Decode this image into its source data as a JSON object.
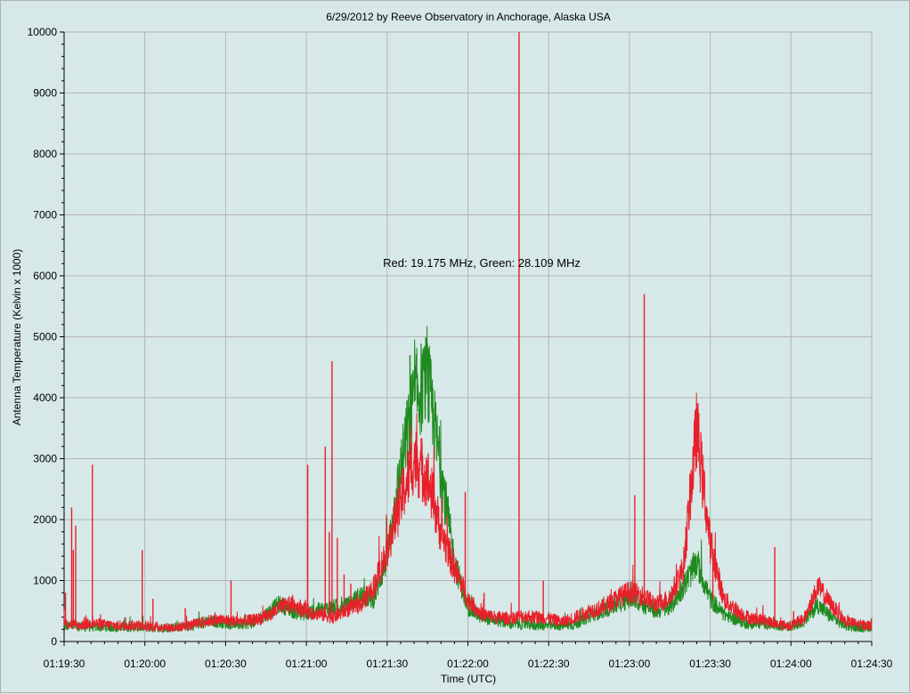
{
  "chart_data": {
    "type": "line",
    "title": "6/29/2012  by  Reeve Observatory  in  Anchorage, Alaska  USA",
    "xlabel": "Time (UTC)",
    "ylabel": "Antenna Temperature (Kelvin x 1000)",
    "ylim": [
      0,
      10000
    ],
    "xlim": [
      "01:19:30",
      "01:24:30"
    ],
    "y_ticks": [
      "0",
      "1000",
      "2000",
      "3000",
      "4000",
      "5000",
      "6000",
      "7000",
      "8000",
      "9000",
      "10000"
    ],
    "x_ticks": [
      "01:19:30",
      "01:20:00",
      "01:20:30",
      "01:21:00",
      "01:21:30",
      "01:22:00",
      "01:22:30",
      "01:23:00",
      "01:23:30",
      "01:24:00",
      "01:24:30"
    ],
    "grid": true,
    "annotation": "Red: 19.175 MHz, Green: 28.109 MHz",
    "series": [
      {
        "color": "#e8202a",
        "x_seconds": [
          0,
          5,
          10,
          15,
          20,
          25,
          30,
          35,
          40,
          45,
          50,
          55,
          60,
          65,
          70,
          75,
          80,
          85,
          90,
          95,
          100,
          105,
          110,
          115,
          120,
          125,
          130,
          135,
          140,
          145,
          150,
          155,
          160,
          165,
          170,
          175,
          180,
          185,
          190,
          195,
          200,
          205,
          210,
          215,
          220,
          225,
          230,
          235,
          240,
          245,
          250,
          255,
          260,
          265,
          270,
          275,
          280,
          285,
          290,
          295,
          300
        ],
        "values": [
          300,
          260,
          300,
          280,
          260,
          270,
          250,
          240,
          230,
          250,
          300,
          350,
          350,
          330,
          350,
          400,
          550,
          620,
          500,
          450,
          400,
          520,
          600,
          900,
          1500,
          2300,
          3000,
          2700,
          1800,
          1200,
          700,
          450,
          400,
          380,
          420,
          400,
          380,
          320,
          400,
          500,
          560,
          700,
          820,
          750,
          600,
          720,
          1200,
          3500,
          1600,
          700,
          500,
          380,
          350,
          280,
          260,
          380,
          900,
          600,
          340,
          280,
          260
        ],
        "spikes": [
          [
            0.5,
            800
          ],
          [
            2.8,
            2200
          ],
          [
            3.4,
            1500
          ],
          [
            4.3,
            1900
          ],
          [
            7.5,
            400
          ],
          [
            10.5,
            2900
          ],
          [
            29.0,
            1500
          ],
          [
            33.0,
            700
          ],
          [
            45.0,
            550
          ],
          [
            62.0,
            1000
          ],
          [
            90.5,
            2900
          ],
          [
            97.0,
            3200
          ],
          [
            98.5,
            1800
          ],
          [
            99.5,
            4600
          ],
          [
            101.5,
            1700
          ],
          [
            104.0,
            1100
          ],
          [
            106.5,
            950
          ],
          [
            149.0,
            2450
          ],
          [
            156.0,
            800
          ],
          [
            169.0,
            10000
          ],
          [
            178.0,
            1000
          ],
          [
            212.0,
            2400
          ],
          [
            215.5,
            5700
          ],
          [
            231.0,
            1800
          ],
          [
            241.0,
            700
          ],
          [
            264.0,
            1550
          ],
          [
            271.0,
            500
          ]
        ]
      },
      {
        "color": "#1e8a1e",
        "x_seconds": [
          0,
          5,
          10,
          15,
          20,
          25,
          30,
          35,
          40,
          45,
          50,
          55,
          60,
          65,
          70,
          75,
          80,
          85,
          90,
          95,
          100,
          105,
          110,
          115,
          120,
          125,
          130,
          135,
          140,
          145,
          150,
          155,
          160,
          165,
          170,
          175,
          180,
          185,
          190,
          195,
          200,
          205,
          210,
          215,
          220,
          225,
          230,
          235,
          240,
          245,
          250,
          255,
          260,
          265,
          270,
          275,
          280,
          285,
          290,
          295,
          300
        ],
        "values": [
          250,
          250,
          240,
          240,
          230,
          240,
          230,
          230,
          220,
          240,
          280,
          330,
          300,
          280,
          300,
          450,
          620,
          500,
          450,
          520,
          560,
          580,
          750,
          700,
          1400,
          2800,
          4000,
          4300,
          2800,
          1300,
          550,
          400,
          350,
          300,
          280,
          270,
          260,
          260,
          280,
          420,
          500,
          600,
          700,
          600,
          500,
          550,
          900,
          1300,
          700,
          450,
          350,
          280,
          300,
          260,
          240,
          350,
          600,
          400,
          260,
          230,
          220
        ],
        "spikes": [
          [
            128.5,
            4700
          ],
          [
            134.0,
            4850
          ],
          [
            136.5,
            4100
          ]
        ]
      }
    ]
  }
}
